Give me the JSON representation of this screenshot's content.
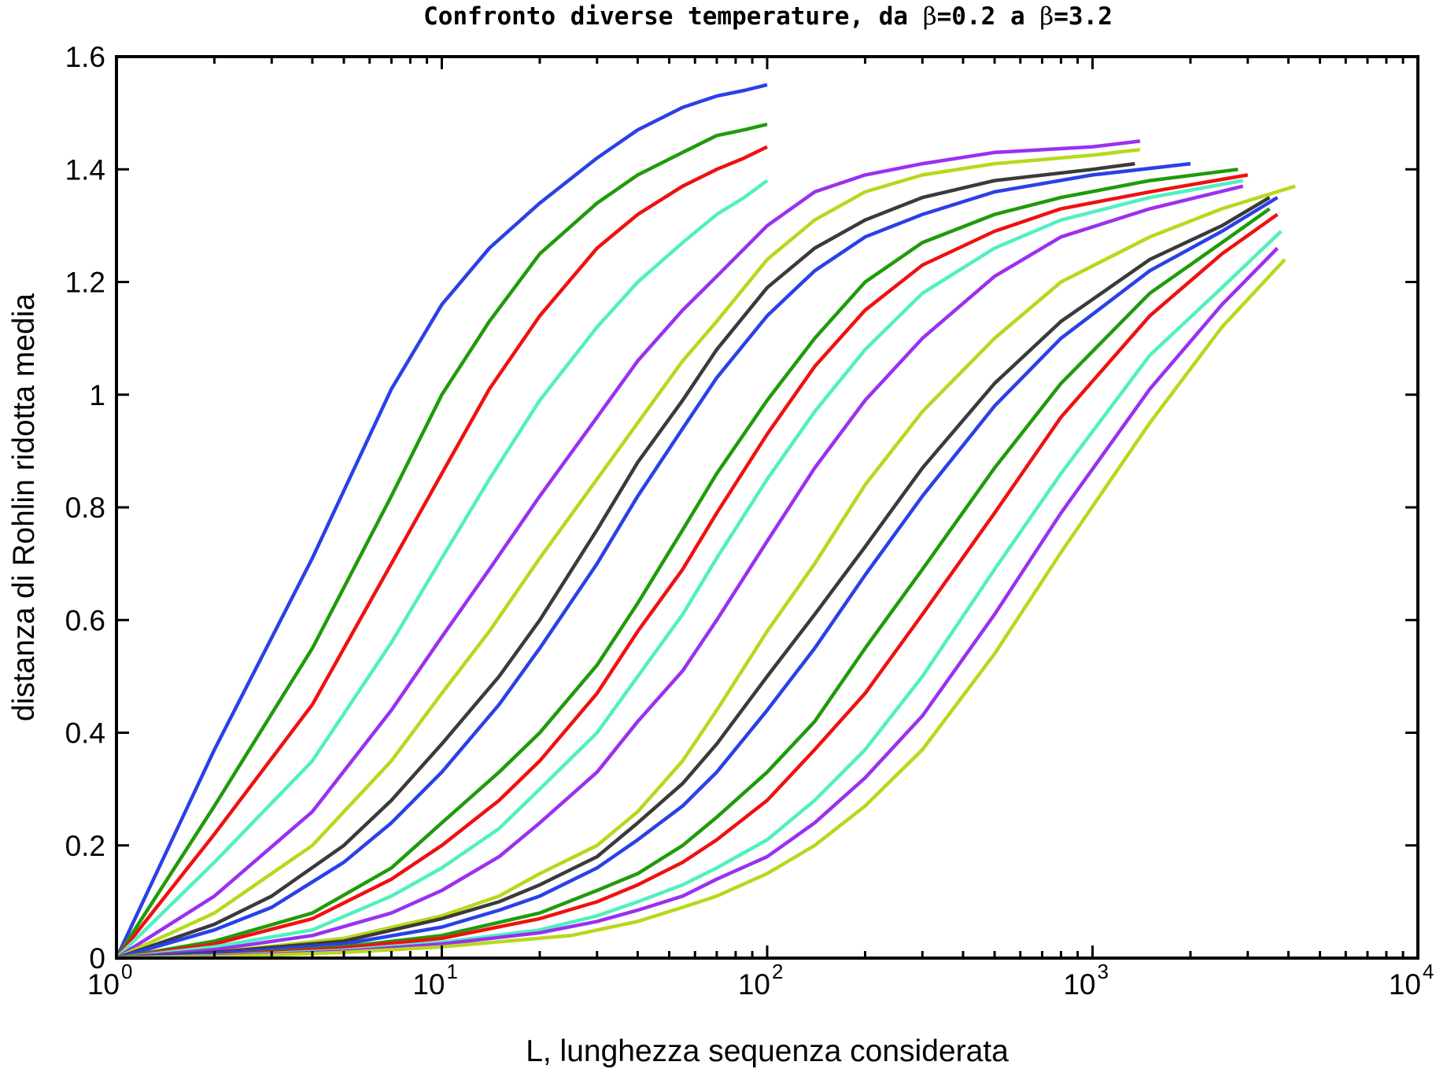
{
  "chart_data": {
    "type": "line",
    "title_prefix": "Confronto diverse temperature, da ",
    "title_beta_start": "β",
    "title_mid": "=0.2 a ",
    "title_beta_end": "β",
    "title_suffix": "=3.2",
    "xlabel": "L, lunghezza sequenza considerata",
    "ylabel": "distanza di Rohlin ridotta media",
    "xscale": "log",
    "xlim": [
      1,
      10000
    ],
    "ylim": [
      0,
      1.6
    ],
    "grid": false,
    "y_ticks": [
      0,
      0.2,
      0.4,
      0.6,
      0.8,
      1,
      1.2,
      1.4,
      1.6
    ],
    "y_tick_labels": [
      "0",
      "0.2",
      "0.4",
      "0.6",
      "0.8",
      "1",
      "1.2",
      "1.4",
      "1.6"
    ],
    "x_ticks": [
      1,
      10,
      100,
      1000,
      10000
    ],
    "x_tick_base": "10",
    "x_tick_exponents": [
      "0",
      "1",
      "2",
      "3",
      "4"
    ],
    "series": [
      {
        "color": "#2a41e6",
        "x": [
          1,
          2,
          4,
          7,
          10,
          14,
          20,
          30,
          40,
          55,
          70,
          85,
          100
        ],
        "y": [
          0,
          0.37,
          0.71,
          1.01,
          1.16,
          1.26,
          1.34,
          1.42,
          1.47,
          1.51,
          1.53,
          1.54,
          1.55
        ]
      },
      {
        "color": "#1f9b0a",
        "x": [
          1,
          2,
          4,
          7,
          10,
          14,
          20,
          30,
          40,
          55,
          70,
          85,
          100
        ],
        "y": [
          0,
          0.27,
          0.55,
          0.82,
          1.0,
          1.13,
          1.25,
          1.34,
          1.39,
          1.43,
          1.46,
          1.47,
          1.48
        ]
      },
      {
        "color": "#f01010",
        "x": [
          1,
          2,
          4,
          7,
          10,
          14,
          20,
          30,
          40,
          55,
          70,
          85,
          100
        ],
        "y": [
          0,
          0.22,
          0.45,
          0.7,
          0.86,
          1.01,
          1.14,
          1.26,
          1.32,
          1.37,
          1.4,
          1.42,
          1.44
        ]
      },
      {
        "color": "#50f0c0",
        "x": [
          1,
          2,
          4,
          7,
          10,
          14,
          20,
          30,
          40,
          55,
          70,
          85,
          100
        ],
        "y": [
          0,
          0.17,
          0.35,
          0.56,
          0.71,
          0.85,
          0.99,
          1.12,
          1.2,
          1.27,
          1.32,
          1.35,
          1.38
        ]
      },
      {
        "color": "#9a30f0",
        "x": [
          1,
          2,
          4,
          7,
          10,
          14,
          20,
          30,
          40,
          55,
          70,
          100,
          140,
          200,
          300,
          500,
          1000,
          1400
        ],
        "y": [
          0,
          0.11,
          0.26,
          0.44,
          0.57,
          0.69,
          0.82,
          0.96,
          1.06,
          1.15,
          1.21,
          1.3,
          1.36,
          1.39,
          1.41,
          1.43,
          1.44,
          1.45
        ]
      },
      {
        "color": "#b8d81c",
        "x": [
          1,
          2,
          4,
          7,
          10,
          14,
          20,
          30,
          40,
          55,
          70,
          100,
          140,
          200,
          300,
          500,
          1000,
          1400
        ],
        "y": [
          0,
          0.08,
          0.2,
          0.35,
          0.47,
          0.58,
          0.71,
          0.85,
          0.95,
          1.06,
          1.13,
          1.24,
          1.31,
          1.36,
          1.39,
          1.41,
          1.425,
          1.435
        ]
      },
      {
        "color": "#3a3a3a",
        "x": [
          1,
          2,
          3,
          5,
          7,
          10,
          15,
          20,
          30,
          40,
          55,
          70,
          100,
          140,
          200,
          300,
          500,
          1000,
          1350
        ],
        "y": [
          0,
          0.06,
          0.11,
          0.2,
          0.28,
          0.38,
          0.5,
          0.6,
          0.76,
          0.88,
          0.99,
          1.08,
          1.19,
          1.26,
          1.31,
          1.35,
          1.38,
          1.4,
          1.41
        ]
      },
      {
        "color": "#2a41e6",
        "x": [
          1,
          2,
          3,
          5,
          7,
          10,
          15,
          20,
          30,
          40,
          55,
          70,
          100,
          140,
          200,
          300,
          500,
          1000,
          2000
        ],
        "y": [
          0,
          0.05,
          0.09,
          0.17,
          0.24,
          0.33,
          0.45,
          0.55,
          0.7,
          0.82,
          0.94,
          1.03,
          1.14,
          1.22,
          1.28,
          1.32,
          1.36,
          1.39,
          1.41
        ]
      },
      {
        "color": "#1f9b0a",
        "x": [
          1,
          2,
          4,
          7,
          10,
          15,
          20,
          30,
          40,
          55,
          70,
          100,
          140,
          200,
          300,
          500,
          800,
          1500,
          2800
        ],
        "y": [
          0,
          0.03,
          0.08,
          0.16,
          0.24,
          0.33,
          0.4,
          0.52,
          0.63,
          0.76,
          0.86,
          0.99,
          1.1,
          1.2,
          1.27,
          1.32,
          1.35,
          1.38,
          1.4
        ]
      },
      {
        "color": "#f01010",
        "x": [
          1,
          2,
          4,
          7,
          10,
          15,
          20,
          30,
          40,
          55,
          70,
          100,
          140,
          200,
          300,
          500,
          800,
          1500,
          3000
        ],
        "y": [
          0,
          0.025,
          0.07,
          0.14,
          0.2,
          0.28,
          0.35,
          0.47,
          0.58,
          0.69,
          0.79,
          0.93,
          1.05,
          1.15,
          1.23,
          1.29,
          1.33,
          1.36,
          1.39
        ]
      },
      {
        "color": "#50f0c0",
        "x": [
          1,
          2,
          4,
          7,
          10,
          15,
          20,
          30,
          40,
          55,
          70,
          100,
          140,
          200,
          300,
          500,
          800,
          1500,
          2900
        ],
        "y": [
          0,
          0.02,
          0.05,
          0.11,
          0.16,
          0.23,
          0.3,
          0.4,
          0.5,
          0.61,
          0.71,
          0.85,
          0.97,
          1.08,
          1.18,
          1.26,
          1.31,
          1.35,
          1.38
        ]
      },
      {
        "color": "#9a30f0",
        "x": [
          1,
          2,
          4,
          7,
          10,
          15,
          20,
          30,
          40,
          55,
          70,
          100,
          140,
          200,
          300,
          500,
          800,
          1500,
          2900
        ],
        "y": [
          0,
          0.015,
          0.04,
          0.08,
          0.12,
          0.18,
          0.24,
          0.33,
          0.42,
          0.51,
          0.6,
          0.74,
          0.87,
          0.99,
          1.1,
          1.21,
          1.28,
          1.33,
          1.37
        ]
      },
      {
        "color": "#b8d81c",
        "x": [
          1,
          2,
          5,
          10,
          15,
          20,
          30,
          40,
          55,
          70,
          100,
          140,
          200,
          300,
          500,
          800,
          1500,
          2500,
          4200
        ],
        "y": [
          0,
          0.01,
          0.035,
          0.075,
          0.11,
          0.15,
          0.2,
          0.26,
          0.35,
          0.44,
          0.58,
          0.7,
          0.84,
          0.97,
          1.1,
          1.2,
          1.28,
          1.33,
          1.37
        ]
      },
      {
        "color": "#3a3a3a",
        "x": [
          1,
          2,
          5,
          10,
          15,
          20,
          30,
          40,
          55,
          70,
          100,
          140,
          200,
          300,
          500,
          800,
          1500,
          2500,
          3500
        ],
        "y": [
          0,
          0.01,
          0.03,
          0.07,
          0.1,
          0.13,
          0.18,
          0.24,
          0.31,
          0.38,
          0.5,
          0.61,
          0.73,
          0.87,
          1.02,
          1.13,
          1.24,
          1.3,
          1.35
        ]
      },
      {
        "color": "#2a41e6",
        "x": [
          1,
          2,
          5,
          10,
          15,
          20,
          30,
          40,
          55,
          70,
          100,
          140,
          200,
          300,
          500,
          800,
          1500,
          2500,
          3700
        ],
        "y": [
          0,
          0.008,
          0.025,
          0.055,
          0.085,
          0.11,
          0.16,
          0.21,
          0.27,
          0.33,
          0.44,
          0.55,
          0.68,
          0.82,
          0.98,
          1.1,
          1.22,
          1.29,
          1.35
        ]
      },
      {
        "color": "#1f9b0a",
        "x": [
          1,
          2,
          5,
          10,
          20,
          30,
          40,
          55,
          70,
          100,
          140,
          200,
          300,
          500,
          800,
          1500,
          2500,
          3500
        ],
        "y": [
          0,
          0.005,
          0.02,
          0.04,
          0.08,
          0.12,
          0.15,
          0.2,
          0.25,
          0.33,
          0.42,
          0.55,
          0.69,
          0.87,
          1.02,
          1.18,
          1.27,
          1.33
        ]
      },
      {
        "color": "#f01010",
        "x": [
          1,
          2,
          5,
          10,
          20,
          30,
          40,
          55,
          70,
          100,
          140,
          200,
          300,
          500,
          800,
          1500,
          2500,
          3700
        ],
        "y": [
          0,
          0.005,
          0.018,
          0.035,
          0.07,
          0.1,
          0.13,
          0.17,
          0.21,
          0.28,
          0.37,
          0.47,
          0.61,
          0.79,
          0.96,
          1.14,
          1.25,
          1.32
        ]
      },
      {
        "color": "#50f0c0",
        "x": [
          1,
          2,
          5,
          10,
          20,
          30,
          40,
          55,
          70,
          100,
          140,
          200,
          300,
          500,
          800,
          1500,
          2500,
          3800
        ],
        "y": [
          0,
          0.004,
          0.014,
          0.028,
          0.05,
          0.075,
          0.1,
          0.13,
          0.16,
          0.21,
          0.28,
          0.37,
          0.5,
          0.69,
          0.86,
          1.07,
          1.19,
          1.29
        ]
      },
      {
        "color": "#9a30f0",
        "x": [
          1,
          2,
          5,
          10,
          20,
          30,
          40,
          55,
          70,
          100,
          140,
          200,
          300,
          500,
          800,
          1500,
          2500,
          3700
        ],
        "y": [
          0,
          0.003,
          0.012,
          0.025,
          0.045,
          0.065,
          0.085,
          0.11,
          0.14,
          0.18,
          0.24,
          0.32,
          0.43,
          0.61,
          0.79,
          1.01,
          1.16,
          1.26
        ]
      },
      {
        "color": "#b8d81c",
        "x": [
          1,
          2,
          5,
          10,
          25,
          40,
          55,
          70,
          100,
          140,
          200,
          300,
          500,
          800,
          1500,
          2500,
          3900
        ],
        "y": [
          0,
          0.002,
          0.01,
          0.02,
          0.04,
          0.065,
          0.09,
          0.11,
          0.15,
          0.2,
          0.27,
          0.37,
          0.54,
          0.72,
          0.95,
          1.12,
          1.24
        ]
      }
    ]
  }
}
